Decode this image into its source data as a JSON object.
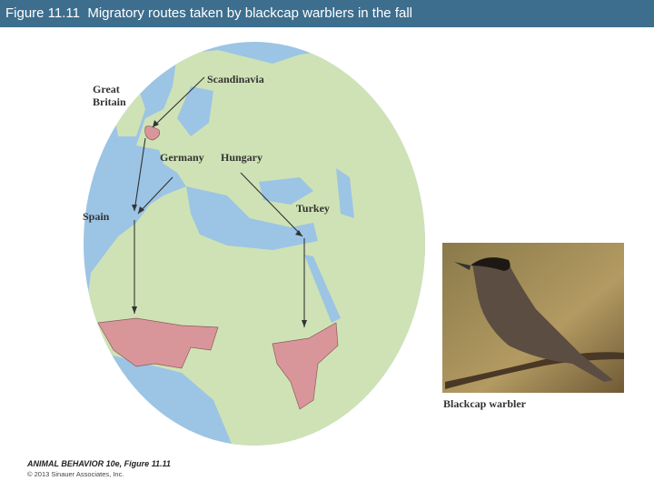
{
  "header": {
    "title": "Figure 11.11  Migratory routes taken by blackcap warblers in the fall"
  },
  "map": {
    "labels": {
      "great_britain": [
        "Great",
        "Britain"
      ],
      "scandinavia": "Scandinavia",
      "germany": "Germany",
      "hungary": "Hungary",
      "spain": "Spain",
      "turkey": "Turkey"
    }
  },
  "photo": {
    "caption": "Blackcap warbler"
  },
  "credit": {
    "source": "ANIMAL BEHAVIOR 10e, Figure 11.11",
    "copyright": "© 2013 Sinauer Associates, Inc."
  }
}
